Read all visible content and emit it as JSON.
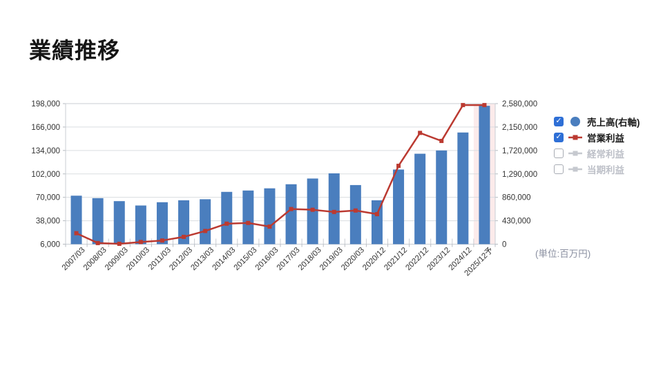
{
  "page": {
    "title": "業績推移",
    "unit_note": "(単位:百万円)"
  },
  "colors": {
    "bar": "#4A7EBE",
    "line": "#BB3A31",
    "checkbox_checked": "#2E6FD6",
    "grid": "#DADDE0",
    "axis_border": "#C9CDD3",
    "tick": "#B6BAC0",
    "axis_text": "#333333",
    "muted_text": "#BDC0C8",
    "muted_icon": "#C6C9CF",
    "highlight_band": "#FCEBEB"
  },
  "legend": {
    "items": [
      {
        "key": "sales",
        "label": "売上高(右軸)",
        "checked": true,
        "marker": "circle",
        "muted": false
      },
      {
        "key": "operating-profit",
        "label": "営業利益",
        "checked": true,
        "marker": "line-square",
        "muted": false
      },
      {
        "key": "ordinary-profit",
        "label": "経常利益",
        "checked": false,
        "marker": "line-square",
        "muted": true
      },
      {
        "key": "net-profit",
        "label": "当期利益",
        "checked": false,
        "marker": "line-square",
        "muted": true
      }
    ]
  },
  "chart_data": {
    "type": "bar+line combo",
    "categories": [
      "2007/03",
      "2008/03",
      "2009/03",
      "2010/03",
      "2011/03",
      "2012/03",
      "2013/03",
      "2014/03",
      "2015/03",
      "2016/03",
      "2017/03",
      "2018/03",
      "2019/03",
      "2020/03",
      "2020/12",
      "2021/12",
      "2022/12",
      "2023/12",
      "2024/12",
      "2025/12予"
    ],
    "series": [
      {
        "name": "売上高(右軸)",
        "type": "bar",
        "axis": "right",
        "values": [
          890000,
          845000,
          790000,
          710000,
          770000,
          805000,
          825000,
          960000,
          985000,
          1025000,
          1100000,
          1205000,
          1300000,
          1085000,
          805000,
          1370000,
          1660000,
          1720000,
          2050000,
          2540000
        ]
      },
      {
        "name": "営業利益",
        "type": "line",
        "axis": "left",
        "values": [
          21000,
          7500,
          6500,
          9000,
          11000,
          16000,
          24000,
          34000,
          35000,
          30000,
          54000,
          53000,
          50000,
          52000,
          47000,
          113000,
          158000,
          147000,
          196000,
          196000
        ]
      }
    ],
    "left_axis": {
      "min": 6000,
      "max": 198000,
      "tick_labels": [
        "198,000",
        "166,000",
        "134,000",
        "102,000",
        "70,000",
        "38,000",
        "6,000"
      ]
    },
    "right_axis": {
      "min": 0,
      "max": 2580000,
      "tick_labels": [
        "2,580,000",
        "2,150,000",
        "1,720,000",
        "1,290,000",
        "860,000",
        "430,000",
        "0"
      ]
    },
    "highlight_category": "2025/12予",
    "grid": true,
    "legend_position": "right"
  }
}
